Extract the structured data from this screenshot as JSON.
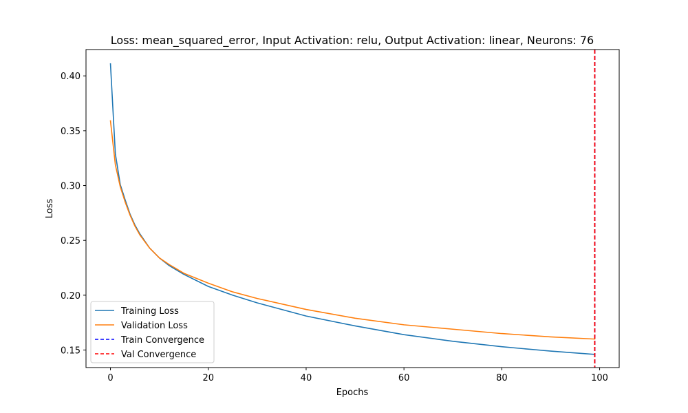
{
  "chart_data": {
    "type": "line",
    "title": "Loss: mean_squared_error, Input Activation: relu, Output Activation: linear, Neurons: 76",
    "xlabel": "Epochs",
    "ylabel": "Loss",
    "xlim": [
      -5,
      104
    ],
    "ylim": [
      0.134,
      0.424
    ],
    "x_ticks": [
      0,
      20,
      40,
      60,
      80,
      100
    ],
    "x_tick_labels": [
      "0",
      "20",
      "40",
      "60",
      "80",
      "100"
    ],
    "y_ticks": [
      0.15,
      0.2,
      0.25,
      0.3,
      0.35,
      0.4
    ],
    "y_tick_labels": [
      "0.15",
      "0.20",
      "0.25",
      "0.30",
      "0.35",
      "0.40"
    ],
    "grid": false,
    "legend_position": "lower-left",
    "x": [
      0,
      1,
      2,
      3,
      4,
      5,
      6,
      8,
      10,
      12,
      15,
      20,
      25,
      30,
      40,
      50,
      60,
      70,
      80,
      90,
      99
    ],
    "series": [
      {
        "name": "Training Loss",
        "color": "#1f77b4",
        "style": "solid",
        "values": [
          0.411,
          0.329,
          0.301,
          0.287,
          0.274,
          0.264,
          0.256,
          0.243,
          0.234,
          0.227,
          0.219,
          0.208,
          0.2,
          0.193,
          0.181,
          0.172,
          0.164,
          0.158,
          0.153,
          0.149,
          0.146
        ]
      },
      {
        "name": "Validation Loss",
        "color": "#ff7f0e",
        "style": "solid",
        "values": [
          0.359,
          0.319,
          0.299,
          0.285,
          0.273,
          0.263,
          0.255,
          0.243,
          0.234,
          0.228,
          0.22,
          0.211,
          0.203,
          0.197,
          0.187,
          0.179,
          0.173,
          0.169,
          0.165,
          0.162,
          0.16
        ]
      }
    ],
    "vlines": [
      {
        "name": "Train Convergence",
        "x": 99,
        "color": "#0000ff",
        "style": "dashed"
      },
      {
        "name": "Val Convergence",
        "x": 99,
        "color": "#ff0000",
        "style": "dashed"
      }
    ]
  }
}
